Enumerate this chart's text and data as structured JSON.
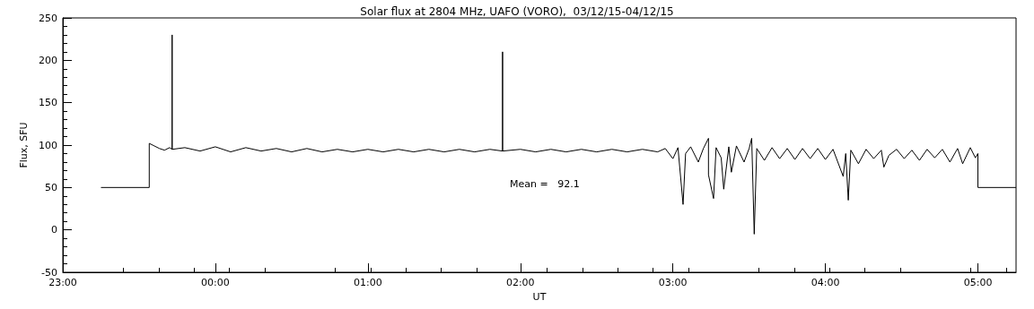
{
  "chart_data": {
    "type": "line",
    "title": "Solar flux at 2804 MHz, UAFO (VORO),  03/12/15-04/12/15",
    "xlabel": "UT",
    "ylabel": "Flux, SFU",
    "annotations": [
      "Mean =   92.1"
    ],
    "xlim": [
      "--12-03T23:00",
      "--12-04T05:15"
    ],
    "xticks": [
      {
        "value": "--12-03T23:00",
        "label": "23:00"
      },
      {
        "value": "--12-04T00:00",
        "label": "00:00"
      },
      {
        "value": "--12-04T01:00",
        "label": "01:00"
      },
      {
        "value": "--12-04T02:00",
        "label": "02:00"
      },
      {
        "value": "--12-04T03:00",
        "label": "03:00"
      },
      {
        "value": "--12-04T04:00",
        "label": "04:00"
      },
      {
        "value": "--12-04T05:00",
        "label": "05:00"
      }
    ],
    "ylim": [
      -50,
      250
    ],
    "yticks": [
      -50,
      0,
      50,
      100,
      150,
      200,
      250
    ],
    "marker": "none",
    "line_style": "solid",
    "series": [
      {
        "color": "#000000",
        "x": [
          "--12-03T23:15",
          "--12-03T23:34",
          "--12-03T23:34",
          "--12-03T23:36",
          "--12-03T23:38",
          "--12-03T23:40",
          "--12-03T23:42",
          "--12-03T23:43",
          "--12-03T23:43",
          "--12-03T23:43",
          "--12-03T23:48",
          "--12-03T23:54",
          "--12-04T00:00",
          "--12-04T00:06",
          "--12-04T00:12",
          "--12-04T00:18",
          "--12-04T00:24",
          "--12-04T00:30",
          "--12-04T00:36",
          "--12-04T00:42",
          "--12-04T00:48",
          "--12-04T00:54",
          "--12-04T01:00",
          "--12-04T01:06",
          "--12-04T01:12",
          "--12-04T01:18",
          "--12-04T01:24",
          "--12-04T01:30",
          "--12-04T01:36",
          "--12-04T01:42",
          "--12-04T01:48",
          "--12-04T01:53",
          "--12-04T01:53",
          "--12-04T01:53",
          "--12-04T02:00",
          "--12-04T02:06",
          "--12-04T02:12",
          "--12-04T02:18",
          "--12-04T02:24",
          "--12-04T02:30",
          "--12-04T02:36",
          "--12-04T02:42",
          "--12-04T02:48",
          "--12-04T02:54",
          "--12-04T02:57",
          "--12-04T03:00",
          "--12-04T03:02",
          "--12-04T03:04",
          "--12-04T03:05",
          "--12-04T03:07",
          "--12-04T03:10",
          "--12-04T03:12",
          "--12-04T03:14",
          "--12-04T03:14",
          "--12-04T03:16",
          "--12-04T03:17",
          "--12-04T03:19",
          "--12-04T03:20",
          "--12-04T03:22",
          "--12-04T03:23",
          "--12-04T03:25",
          "--12-04T03:28",
          "--12-04T03:30",
          "--12-04T03:31",
          "--12-04T03:32",
          "--12-04T03:33",
          "--12-04T03:36",
          "--12-04T03:39",
          "--12-04T03:42",
          "--12-04T03:45",
          "--12-04T03:48",
          "--12-04T03:51",
          "--12-04T03:54",
          "--12-04T03:57",
          "--12-04T04:00",
          "--12-04T04:03",
          "--12-04T04:07",
          "--12-04T04:08",
          "--12-04T04:09",
          "--12-04T04:10",
          "--12-04T04:13",
          "--12-04T04:16",
          "--12-04T04:19",
          "--12-04T04:22",
          "--12-04T04:23",
          "--12-04T04:25",
          "--12-04T04:28",
          "--12-04T04:31",
          "--12-04T04:34",
          "--12-04T04:37",
          "--12-04T04:40",
          "--12-04T04:43",
          "--12-04T04:46",
          "--12-04T04:49",
          "--12-04T04:52",
          "--12-04T04:54",
          "--12-04T04:57",
          "--12-04T04:59",
          "--12-04T05:00",
          "--12-04T05:00",
          "--12-04T05:15"
        ],
        "values": [
          50,
          50,
          102,
          99,
          96,
          94,
          97,
          95,
          230,
          95,
          97,
          93,
          98,
          92,
          97,
          93,
          96,
          92,
          96,
          92,
          95,
          92,
          95,
          92,
          95,
          92,
          95,
          92,
          95,
          92,
          95,
          93,
          210,
          93,
          95,
          92,
          95,
          92,
          95,
          92,
          95,
          92,
          95,
          92,
          96,
          84,
          97,
          30,
          90,
          98,
          80,
          96,
          108,
          65,
          37,
          97,
          85,
          48,
          98,
          68,
          99,
          80,
          96,
          108,
          -5,
          96,
          82,
          97,
          84,
          96,
          83,
          96,
          84,
          96,
          83,
          95,
          63,
          90,
          35,
          94,
          78,
          95,
          84,
          94,
          74,
          88,
          95,
          84,
          94,
          82,
          95,
          85,
          95,
          80,
          96,
          78,
          97,
          85,
          90,
          50,
          50
        ]
      }
    ]
  }
}
